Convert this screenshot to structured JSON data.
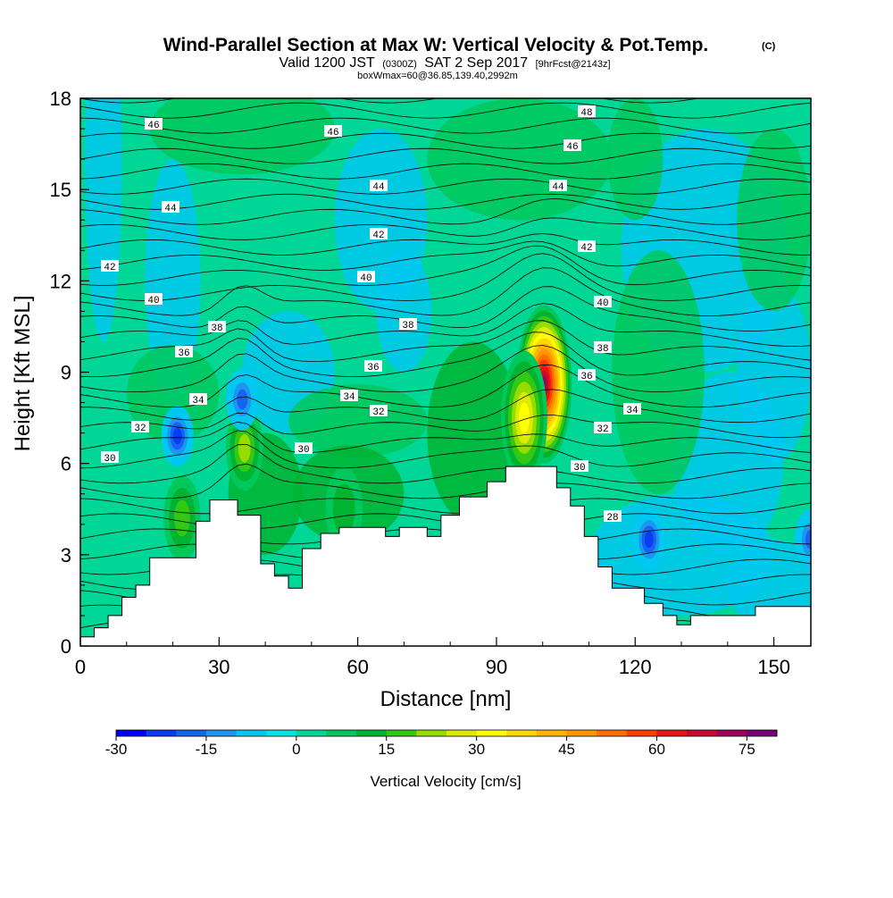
{
  "chart_data": {
    "type": "heatmap",
    "title": "Wind-Parallel Section at Max W: Vertical Velocity & Pot.Temp.",
    "title_tag": "(C)",
    "subtitle_main1": "Valid 1200 JST",
    "subtitle_small1": "(0300Z)",
    "subtitle_main2": "SAT 2 Sep 2017",
    "subtitle_small2": "[9hrFcst@2143z]",
    "subtitle2": "boxWmax=60@36.85,139.40,2992m",
    "xlabel": "Distance [nm]",
    "ylabel": "Height [Kft MSL]",
    "xlim": [
      0,
      158
    ],
    "ylim": [
      0,
      18
    ],
    "x_ticks": [
      "0",
      "30",
      "60",
      "90",
      "120",
      "150"
    ],
    "y_ticks": [
      "0",
      "3",
      "6",
      "9",
      "12",
      "15",
      "18"
    ],
    "colorbar": {
      "label": "Vertical Velocity [cm/s]",
      "ticks": [
        "-30",
        "-15",
        "0",
        "15",
        "30",
        "45",
        "60",
        "75"
      ],
      "min": -30,
      "max": 80,
      "colors": [
        "#0000ff",
        "#0a3cf5",
        "#1464f0",
        "#1e96f0",
        "#00c8f0",
        "#00e6e6",
        "#00d796",
        "#00c85a",
        "#00b432",
        "#32c814",
        "#96dc00",
        "#dceb00",
        "#ffff00",
        "#ffd700",
        "#ffb400",
        "#ff9600",
        "#ff6e00",
        "#ff3c00",
        "#eb1414",
        "#c80a32",
        "#a0005a",
        "#780078"
      ]
    },
    "velocity_peaks_cms": [
      {
        "x": 100.3,
        "y": 8.6,
        "w": 75
      },
      {
        "x": 96,
        "y": 7.5,
        "w": 35
      },
      {
        "x": 35.5,
        "y": 6.5,
        "w": 25
      },
      {
        "x": 22,
        "y": 4.2,
        "w": 22
      },
      {
        "x": 57,
        "y": 4.5,
        "w": 15
      },
      {
        "x": 21,
        "y": 6.9,
        "w": -25
      },
      {
        "x": 35,
        "y": 8.1,
        "w": -18
      },
      {
        "x": 123,
        "y": 3.5,
        "w": -22
      },
      {
        "x": 158,
        "y": 3.5,
        "w": -20
      }
    ],
    "theta_contour_labels": [
      "46",
      "46",
      "48",
      "46",
      "44",
      "44",
      "44",
      "42",
      "42",
      "42",
      "40",
      "40",
      "40",
      "38",
      "38",
      "38",
      "36",
      "36",
      "36",
      "34",
      "34",
      "34",
      "32",
      "32",
      "32",
      "30",
      "30",
      "30",
      "28"
    ],
    "terrain_kft": [
      [
        0,
        0.3
      ],
      [
        3,
        0.3
      ],
      [
        3,
        0.6
      ],
      [
        6,
        0.6
      ],
      [
        6,
        1.0
      ],
      [
        9,
        1.0
      ],
      [
        9,
        1.6
      ],
      [
        12,
        1.6
      ],
      [
        12,
        2.0
      ],
      [
        15,
        2.0
      ],
      [
        15,
        2.9
      ],
      [
        25,
        2.9
      ],
      [
        25,
        4.1
      ],
      [
        28,
        4.1
      ],
      [
        28,
        4.8
      ],
      [
        34,
        4.8
      ],
      [
        34,
        4.3
      ],
      [
        39,
        4.3
      ],
      [
        39,
        2.7
      ],
      [
        42,
        2.7
      ],
      [
        42,
        2.3
      ],
      [
        45,
        2.3
      ],
      [
        45,
        1.9
      ],
      [
        48,
        1.9
      ],
      [
        48,
        3.2
      ],
      [
        52,
        3.2
      ],
      [
        52,
        3.7
      ],
      [
        56,
        3.7
      ],
      [
        56,
        3.9
      ],
      [
        66,
        3.9
      ],
      [
        66,
        3.6
      ],
      [
        69,
        3.6
      ],
      [
        69,
        3.9
      ],
      [
        75,
        3.9
      ],
      [
        75,
        3.6
      ],
      [
        78,
        3.6
      ],
      [
        78,
        4.3
      ],
      [
        82,
        4.3
      ],
      [
        82,
        4.9
      ],
      [
        88,
        4.9
      ],
      [
        88,
        5.4
      ],
      [
        92,
        5.4
      ],
      [
        92,
        5.9
      ],
      [
        103,
        5.9
      ],
      [
        103,
        5.2
      ],
      [
        106,
        5.2
      ],
      [
        106,
        4.6
      ],
      [
        109,
        4.6
      ],
      [
        109,
        3.6
      ],
      [
        112,
        3.6
      ],
      [
        112,
        2.6
      ],
      [
        115,
        2.6
      ],
      [
        115,
        1.9
      ],
      [
        122,
        1.9
      ],
      [
        122,
        1.4
      ],
      [
        126,
        1.4
      ],
      [
        126,
        1.0
      ],
      [
        129,
        1.0
      ],
      [
        129,
        0.7
      ],
      [
        132,
        0.7
      ],
      [
        132,
        1.0
      ],
      [
        146,
        1.0
      ],
      [
        146,
        1.3
      ],
      [
        158,
        1.3
      ]
    ]
  }
}
